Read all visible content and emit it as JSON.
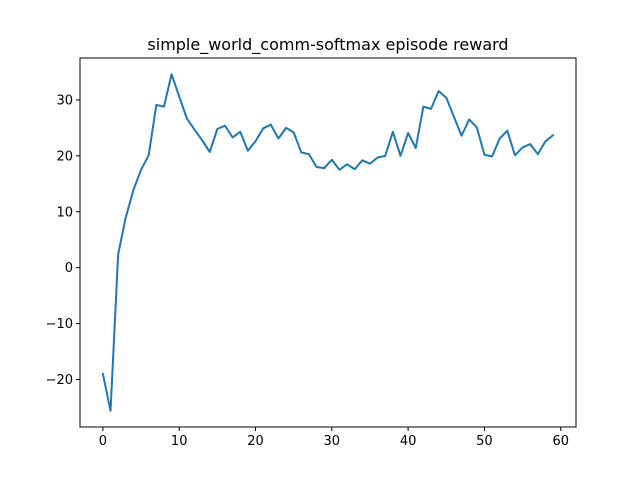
{
  "chart_data": {
    "type": "line",
    "title": "simple_world_comm-softmax episode reward",
    "xlabel": "",
    "ylabel": "",
    "xlim": [
      -3,
      62
    ],
    "ylim": [
      -28.5,
      37.5
    ],
    "xticks": [
      0,
      10,
      20,
      30,
      40,
      50,
      60
    ],
    "yticks": [
      -20,
      -10,
      0,
      10,
      20,
      30
    ],
    "grid": false,
    "legend": "none",
    "x": [
      0,
      1,
      2,
      3,
      4,
      5,
      6,
      7,
      8,
      9,
      10,
      11,
      12,
      13,
      14,
      15,
      16,
      17,
      18,
      19,
      20,
      21,
      22,
      23,
      24,
      25,
      26,
      27,
      28,
      29,
      30,
      31,
      32,
      33,
      34,
      35,
      36,
      37,
      38,
      39,
      40,
      41,
      42,
      43,
      44,
      45,
      46,
      47,
      48,
      49,
      50,
      51,
      52,
      53,
      54,
      55,
      56,
      57,
      58,
      59
    ],
    "series": [
      {
        "color": "#1f77b4",
        "values": [
          -19.0,
          -25.6,
          2.4,
          9.0,
          13.9,
          17.5,
          20.1,
          29.1,
          28.8,
          34.6,
          30.6,
          26.7,
          24.7,
          22.8,
          20.7,
          24.8,
          25.4,
          23.3,
          24.3,
          20.9,
          22.6,
          24.9,
          25.6,
          23.1,
          25.0,
          24.2,
          20.6,
          20.3,
          18.0,
          17.8,
          19.3,
          17.5,
          18.5,
          17.6,
          19.2,
          18.6,
          19.7,
          20.0,
          24.3,
          20.0,
          24.1,
          21.4,
          28.8,
          28.4,
          31.6,
          30.4,
          27.0,
          23.6,
          26.5,
          25.1,
          20.2,
          19.9,
          23.1,
          24.5,
          20.1,
          21.5,
          22.1,
          20.3,
          22.6,
          23.7
        ]
      }
    ]
  }
}
